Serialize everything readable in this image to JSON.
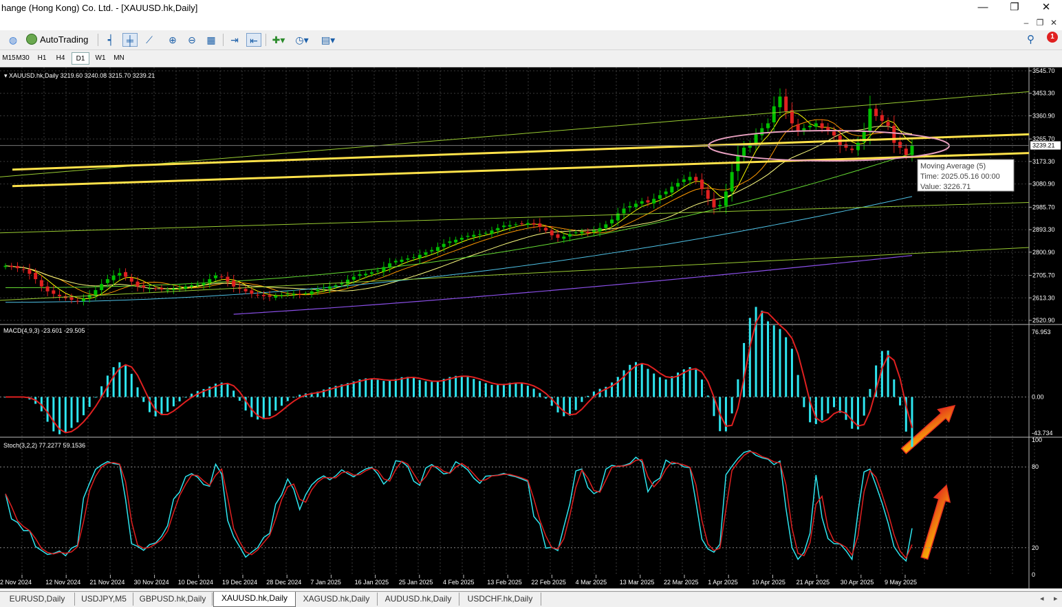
{
  "window": {
    "title": "hange (Hong Kong) Co. Ltd. - [XAUUSD.hk,Daily]",
    "controls": [
      "—",
      "❐",
      "✕"
    ],
    "mdi_controls": [
      "–",
      "❐",
      "✕"
    ]
  },
  "toolbar": {
    "autotrading_label": "AutoTrading",
    "icons": [
      "signal-icon",
      "autotrading-icon",
      "bar-chart-icon",
      "candlestick-icon",
      "line-chart-icon",
      "zoom-in-icon",
      "zoom-out-icon",
      "tile-windows-icon",
      "chart-shift-icon",
      "autoscroll-icon",
      "indicators-icon",
      "periods-icon",
      "templates-icon"
    ],
    "alert_count": "1"
  },
  "timeframes": [
    "M15",
    "M30",
    "H1",
    "H4",
    "D1",
    "W1",
    "MN"
  ],
  "active_timeframe": "D1",
  "tabs": [
    "EURUSD,Daily",
    "USDJPY,M5",
    "GBPUSD.hk,Daily",
    "XAUUSD.hk,Daily",
    "XAGUSD.hk,Daily",
    "AUDUSD.hk,Daily",
    "USDCHF.hk,Daily"
  ],
  "active_tab": "XAUUSD.hk,Daily",
  "chart_data": {
    "type": "candlestick",
    "symbol_header": "XAUUSD.hk,Daily",
    "ohlc_header": "3219.60 3240.08 3215.70 3239.21",
    "current_price": "3239.21",
    "price_axis": [
      "3545.70",
      "3453.30",
      "3360.90",
      "3265.70",
      "3173.30",
      "3080.90",
      "2985.70",
      "2893.30",
      "2800.90",
      "2705.70",
      "2613.30",
      "2520.90"
    ],
    "ylim": [
      2520.9,
      3545.7
    ],
    "date_axis": [
      "2 Nov 2024",
      "12 Nov 2024",
      "21 Nov 2024",
      "30 Nov 2024",
      "10 Dec 2024",
      "19 Dec 2024",
      "28 Dec 2024",
      "7 Jan 2025",
      "16 Jan 2025",
      "25 Jan 2025",
      "4 Feb 2025",
      "13 Feb 2025",
      "22 Feb 2025",
      "4 Mar 2025",
      "13 Mar 2025",
      "22 Mar 2025",
      "1 Apr 2025",
      "10 Apr 2025",
      "21 Apr 2025",
      "30 Apr 2025",
      "9 May 2025"
    ],
    "close": [
      2745,
      2740,
      2735,
      2730,
      2712,
      2690,
      2660,
      2640,
      2630,
      2620,
      2612,
      2605,
      2600,
      2610,
      2625,
      2645,
      2670,
      2690,
      2705,
      2715,
      2700,
      2680,
      2660,
      2655,
      2652,
      2650,
      2648,
      2645,
      2650,
      2655,
      2660,
      2665,
      2670,
      2675,
      2690,
      2705,
      2700,
      2680,
      2660,
      2650,
      2640,
      2630,
      2625,
      2620,
      2618,
      2622,
      2625,
      2630,
      2630,
      2628,
      2632,
      2640,
      2648,
      2655,
      2660,
      2665,
      2675,
      2688,
      2700,
      2710,
      2712,
      2718,
      2725,
      2740,
      2755,
      2765,
      2770,
      2775,
      2780,
      2790,
      2800,
      2810,
      2822,
      2835,
      2845,
      2852,
      2860,
      2868,
      2872,
      2875,
      2880,
      2890,
      2900,
      2910,
      2912,
      2915,
      2918,
      2920,
      2915,
      2905,
      2890,
      2870,
      2860,
      2865,
      2875,
      2882,
      2885,
      2880,
      2890,
      2900,
      2915,
      2935,
      2960,
      2980,
      2990,
      3000,
      3010,
      3005,
      3020,
      3035,
      3050,
      3070,
      3085,
      3100,
      3110,
      3095,
      3060,
      3020,
      2985,
      2995,
      3050,
      3130,
      3200,
      3230,
      3240,
      3285,
      3310,
      3330,
      3400,
      3440,
      3380,
      3330,
      3300,
      3310,
      3320,
      3330,
      3310,
      3300,
      3280,
      3240,
      3230,
      3220,
      3250,
      3300,
      3390,
      3360,
      3340,
      3320,
      3250,
      3230,
      3200,
      3239
    ],
    "moving_averages": [
      {
        "name": "MA(5)",
        "color": "#ffff00"
      },
      {
        "name": "MA(10)",
        "color": "#ff9900"
      },
      {
        "name": "MA(20)",
        "color": "#ffff80"
      },
      {
        "name": "MA(50)",
        "color": "#66dd33"
      },
      {
        "name": "MA(100)",
        "color": "#4fc3e8"
      },
      {
        "name": "MA(200)",
        "color": "#8a4fe8"
      }
    ],
    "tooltip": {
      "line1": "Moving Average (5)",
      "line2": "Time: 2025.05.16 00:00",
      "line3": "Value: 3226.71"
    },
    "macd": {
      "label": "MACD(4,9,3) -23.601 -29.505",
      "axis": [
        "76.953",
        "0.00",
        "-43.734"
      ],
      "ylim": [
        -43.734,
        76.953
      ]
    },
    "stoch": {
      "label": "Stoch(3,2,2) 77.2277 59.1536",
      "axis": [
        "100",
        "80",
        "20",
        "0"
      ],
      "ylim": [
        0,
        100
      ]
    },
    "colors": {
      "background": "#000000",
      "bull": "#00c000",
      "bear": "#e02020",
      "grid": "#3a3a3a",
      "support": "#ffe24a",
      "channel": "#9acd32",
      "macd_hist": "#2ee6f0",
      "signal": "#e02020",
      "annotation": "#e8a0c0",
      "arrow": "#e83020"
    }
  }
}
